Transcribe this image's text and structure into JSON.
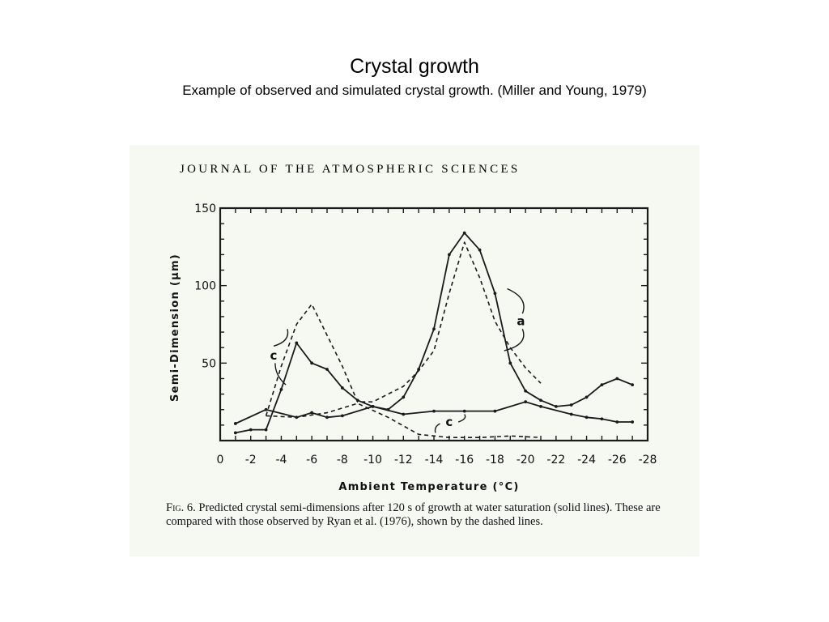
{
  "slide": {
    "title": "Crystal growth",
    "subtitle": "Example of observed and simulated crystal growth. (Miller and Young, 1979)"
  },
  "figure": {
    "journal_header": "JOURNAL OF THE ATMOSPHERIC SCIENCES",
    "caption_label": "Fig. 6.",
    "caption_text": "Predicted crystal semi-dimensions after 120 s of growth at water saturation (solid lines). These are compared with those observed by Ryan et al. (1976), shown by the dashed lines."
  },
  "chart_data": {
    "type": "line",
    "title": "",
    "xlabel": "Ambient Temperature (°C)",
    "ylabel": "Semi-Dimension (µm)",
    "xlim": [
      0,
      -28
    ],
    "ylim": [
      0,
      150
    ],
    "x_ticks": [
      0,
      -2,
      -4,
      -6,
      -8,
      -10,
      -12,
      -14,
      -16,
      -18,
      -20,
      -22,
      -24,
      -26,
      -28
    ],
    "x_tick_labels": [
      "0",
      "-2",
      "-4",
      "-6",
      "-8",
      "-10",
      "-12",
      "-14",
      "-16",
      "-18",
      "-20",
      "-22",
      "-24",
      "-26",
      "-28"
    ],
    "y_tick_labels": [
      {
        "value": 50,
        "label": "50"
      },
      {
        "value": 100,
        "label": "100"
      },
      {
        "value": 150,
        "label": "150"
      }
    ],
    "grid": false,
    "legend": "none",
    "series": [
      {
        "style": "solid",
        "x": [
          -1,
          -3,
          -5,
          -6,
          -7,
          -8,
          -10,
          -12,
          -14,
          -16,
          -18,
          -20,
          -21,
          -23,
          -24,
          -25,
          -26,
          -27
        ],
        "y": [
          11,
          20,
          15,
          18,
          15,
          16,
          22,
          17,
          19,
          19,
          19,
          25,
          22,
          17,
          15,
          14,
          12,
          12
        ]
      },
      {
        "style": "solid",
        "x": [
          -1,
          -2,
          -3,
          -4,
          -5,
          -6,
          -7,
          -8,
          -9,
          -10,
          -11,
          -12,
          -13,
          -14,
          -15,
          -16,
          -17,
          -18,
          -19,
          -20,
          -21,
          -22,
          -23,
          -24,
          -25,
          -26,
          -27
        ],
        "y": [
          5,
          7,
          7,
          33,
          63,
          50,
          46,
          34,
          26,
          22,
          20,
          28,
          46,
          72,
          120,
          134,
          123,
          95,
          50,
          32,
          26,
          22,
          23,
          28,
          36,
          40,
          36
        ]
      },
      {
        "style": "dashed",
        "x": [
          -3,
          -4,
          -5,
          -6,
          -7,
          -8,
          -9,
          -10,
          -11,
          -12,
          -13,
          -14,
          -15,
          -16,
          -17,
          -18,
          -19,
          -20,
          -21
        ],
        "y": [
          16,
          48,
          75,
          88,
          68,
          48,
          25,
          25,
          30,
          35,
          45,
          58,
          95,
          128,
          105,
          77,
          60,
          47,
          37
        ]
      },
      {
        "style": "dashed",
        "x": [
          -3,
          -5,
          -7,
          -9,
          -11,
          -13,
          -15,
          -17,
          -19,
          -21
        ],
        "y": [
          16,
          15,
          18,
          24,
          15,
          4,
          2,
          2,
          3,
          2
        ]
      }
    ],
    "annotations": [
      {
        "text": "a",
        "x": -19.7,
        "y": 77
      },
      {
        "text": "c",
        "x": -3.5,
        "y": 55
      },
      {
        "text": "c",
        "x": -15,
        "y": 12
      }
    ]
  }
}
